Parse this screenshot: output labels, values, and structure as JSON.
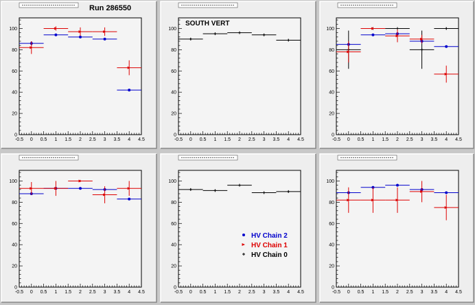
{
  "run_label": "Run 286550",
  "legend": [
    {
      "label": "HV Chain 2",
      "color": "#0000cc",
      "marker": "dot"
    },
    {
      "label": "HV Chain 1",
      "color": "#dd0000",
      "marker": "arrow"
    },
    {
      "label": "HV Chain 0",
      "color": "#000000",
      "marker": "cross"
    }
  ],
  "chart_data": [
    {
      "type": "scatter",
      "title": "",
      "annotation": "Run 286550",
      "xlim": [
        -0.5,
        4.5
      ],
      "ylim": [
        0,
        110
      ],
      "x_ticks": [
        "-0.5",
        "0",
        "0.5",
        "1",
        "1.5",
        "2",
        "2.5",
        "3",
        "3.5",
        "4",
        "4.5"
      ],
      "y_ticks": [
        "0",
        "20",
        "40",
        "60",
        "80",
        "100"
      ],
      "series": [
        {
          "color": "#0000cc",
          "marker": "dot",
          "points": [
            {
              "x": 0,
              "y": 86,
              "err": 2
            },
            {
              "x": 1,
              "y": 94,
              "err": 1
            },
            {
              "x": 2,
              "y": 92,
              "err": 1
            },
            {
              "x": 3,
              "y": 90,
              "err": 1
            },
            {
              "x": 4,
              "y": 42,
              "err": 0
            }
          ]
        },
        {
          "color": "#dd0000",
          "marker": "arrow",
          "points": [
            {
              "x": 0,
              "y": 82,
              "err": 6
            },
            {
              "x": 1,
              "y": 100,
              "err": 2
            },
            {
              "x": 2,
              "y": 97,
              "err": 4
            },
            {
              "x": 3,
              "y": 97,
              "err": 4
            },
            {
              "x": 4,
              "y": 63,
              "err": 7
            }
          ]
        }
      ]
    },
    {
      "type": "scatter",
      "title": "",
      "annotation": "SOUTH VERT",
      "xlim": [
        -0.5,
        4.5
      ],
      "ylim": [
        0,
        110
      ],
      "x_ticks": [
        "-0.5",
        "0",
        "0.5",
        "1",
        "1.5",
        "2",
        "2.5",
        "3",
        "3.5",
        "4",
        "4.5"
      ],
      "y_ticks": [
        "0",
        "20",
        "40",
        "60",
        "80",
        "100"
      ],
      "series": [
        {
          "color": "#000000",
          "marker": "cross",
          "points": [
            {
              "x": 0,
              "y": 90,
              "err": 1
            },
            {
              "x": 1,
              "y": 95,
              "err": 1
            },
            {
              "x": 2,
              "y": 96,
              "err": 1
            },
            {
              "x": 3,
              "y": 94,
              "err": 1
            },
            {
              "x": 4,
              "y": 89,
              "err": 1
            }
          ]
        }
      ]
    },
    {
      "type": "scatter",
      "title": "",
      "annotation": "",
      "xlim": [
        -0.5,
        4.5
      ],
      "ylim": [
        0,
        110
      ],
      "x_ticks": [
        "-0.5",
        "0",
        "0.5",
        "1",
        "1.5",
        "2",
        "2.5",
        "3",
        "3.5",
        "4",
        "4.5"
      ],
      "y_ticks": [
        "0",
        "20",
        "40",
        "60",
        "80",
        "100"
      ],
      "series": [
        {
          "color": "#000000",
          "marker": "cross",
          "points": [
            {
              "x": 0,
              "y": 80,
              "err": 18
            },
            {
              "x": 1,
              "y": 100,
              "err": 1
            },
            {
              "x": 2,
              "y": 100,
              "err": 1
            },
            {
              "x": 3,
              "y": 80,
              "err": 18
            },
            {
              "x": 4,
              "y": 100,
              "err": 1
            }
          ]
        },
        {
          "color": "#0000cc",
          "marker": "dot",
          "points": [
            {
              "x": 0,
              "y": 85,
              "err": 1
            },
            {
              "x": 1,
              "y": 94,
              "err": 1
            },
            {
              "x": 2,
              "y": 95,
              "err": 1
            },
            {
              "x": 3,
              "y": 88,
              "err": 2
            },
            {
              "x": 4,
              "y": 83,
              "err": 1
            }
          ]
        },
        {
          "color": "#dd0000",
          "marker": "arrow",
          "points": [
            {
              "x": 0,
              "y": 78,
              "err": 10
            },
            {
              "x": 1,
              "y": 100,
              "err": 1
            },
            {
              "x": 2,
              "y": 93,
              "err": 6
            },
            {
              "x": 3,
              "y": 90,
              "err": 4
            },
            {
              "x": 4,
              "y": 57,
              "err": 8
            }
          ]
        }
      ]
    },
    {
      "type": "scatter",
      "title": "",
      "annotation": "",
      "xlim": [
        -0.5,
        4.5
      ],
      "ylim": [
        0,
        110
      ],
      "x_ticks": [
        "-0.5",
        "0",
        "0.5",
        "1",
        "1.5",
        "2",
        "2.5",
        "3",
        "3.5",
        "4",
        "4.5"
      ],
      "y_ticks": [
        "0",
        "20",
        "40",
        "60",
        "80",
        "100"
      ],
      "series": [
        {
          "color": "#0000cc",
          "marker": "dot",
          "points": [
            {
              "x": 0,
              "y": 88,
              "err": 1
            },
            {
              "x": 1,
              "y": 93,
              "err": 1
            },
            {
              "x": 2,
              "y": 93,
              "err": 1
            },
            {
              "x": 3,
              "y": 92,
              "err": 1
            },
            {
              "x": 4,
              "y": 83,
              "err": 1
            }
          ]
        },
        {
          "color": "#dd0000",
          "marker": "arrow",
          "points": [
            {
              "x": 0,
              "y": 93,
              "err": 6
            },
            {
              "x": 1,
              "y": 93,
              "err": 7
            },
            {
              "x": 2,
              "y": 100,
              "err": 1
            },
            {
              "x": 3,
              "y": 87,
              "err": 8
            },
            {
              "x": 4,
              "y": 93,
              "err": 7
            }
          ]
        }
      ]
    },
    {
      "type": "scatter",
      "title": "",
      "annotation": "",
      "xlim": [
        -0.5,
        4.5
      ],
      "ylim": [
        0,
        110
      ],
      "x_ticks": [
        "-0.5",
        "0",
        "0.5",
        "1",
        "1.5",
        "2",
        "2.5",
        "3",
        "3.5",
        "4",
        "4.5"
      ],
      "y_ticks": [
        "0",
        "20",
        "40",
        "60",
        "80",
        "100"
      ],
      "show_legend": true,
      "series": [
        {
          "color": "#000000",
          "marker": "cross",
          "points": [
            {
              "x": 0,
              "y": 92,
              "err": 1
            },
            {
              "x": 1,
              "y": 91,
              "err": 1
            },
            {
              "x": 2,
              "y": 96,
              "err": 1
            },
            {
              "x": 3,
              "y": 89,
              "err": 1
            },
            {
              "x": 4,
              "y": 90,
              "err": 1
            }
          ]
        }
      ]
    },
    {
      "type": "scatter",
      "title": "",
      "annotation": "",
      "xlim": [
        -0.5,
        4.5
      ],
      "ylim": [
        0,
        110
      ],
      "x_ticks": [
        "-0.5",
        "0",
        "0.5",
        "1",
        "1.5",
        "2",
        "2.5",
        "3",
        "3.5",
        "4",
        "4.5"
      ],
      "y_ticks": [
        "0",
        "20",
        "40",
        "60",
        "80",
        "100"
      ],
      "series": [
        {
          "color": "#0000cc",
          "marker": "dot",
          "points": [
            {
              "x": 0,
              "y": 89,
              "err": 1
            },
            {
              "x": 1,
              "y": 94,
              "err": 1
            },
            {
              "x": 2,
              "y": 96,
              "err": 1
            },
            {
              "x": 3,
              "y": 92,
              "err": 1
            },
            {
              "x": 4,
              "y": 89,
              "err": 1
            }
          ]
        },
        {
          "color": "#dd0000",
          "marker": "arrow",
          "points": [
            {
              "x": 0,
              "y": 82,
              "err": 12
            },
            {
              "x": 1,
              "y": 82,
              "err": 12
            },
            {
              "x": 2,
              "y": 82,
              "err": 12
            },
            {
              "x": 3,
              "y": 90,
              "err": 10
            },
            {
              "x": 4,
              "y": 75,
              "err": 12
            }
          ]
        }
      ]
    }
  ]
}
